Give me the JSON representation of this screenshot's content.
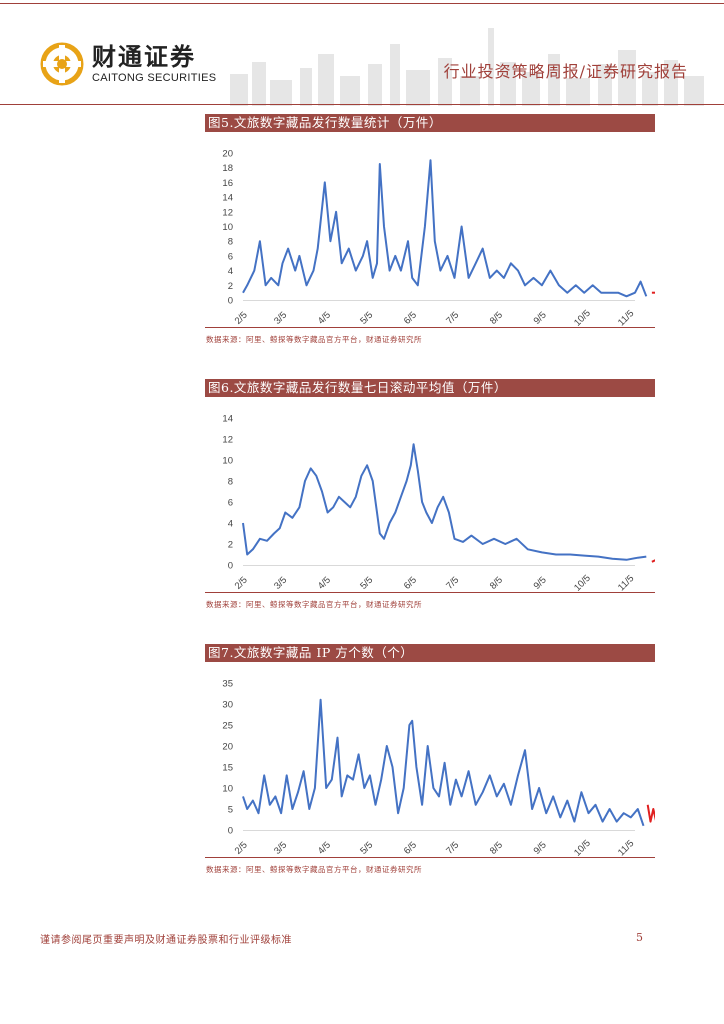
{
  "header": {
    "logo_cn": "财通证券",
    "logo_en": "CAITONG SECURITIES",
    "title": "行业投资策略周报/证券研究报告"
  },
  "figures": [
    {
      "title": "图5.文旅数字藏品发行数量统计（万件）",
      "source": "数据来源：阿里、鲸探等数字藏品官方平台，财通证券研究所"
    },
    {
      "title": "图6.文旅数字藏品发行数量七日滚动平均值（万件）",
      "source": "数据来源：阿里、鲸探等数字藏品官方平台，财通证券研究所"
    },
    {
      "title": "图7.文旅数字藏品 IP 方个数（个）",
      "source": "数据来源：阿里、鲸探等数字藏品官方平台，财通证券研究所"
    }
  ],
  "footer": {
    "disclaimer": "谨请参阅尾页重要声明及财通证券股票和行业评级标准",
    "page": "5"
  },
  "colors": {
    "accent": "#a0403a",
    "title_bar": "#9c4a44",
    "series": "#4472c4",
    "highlight": "#e02020"
  },
  "chart_data": [
    {
      "type": "line",
      "x_ticks": [
        "2/5",
        "3/5",
        "4/5",
        "5/5",
        "6/5",
        "7/5",
        "8/5",
        "9/5",
        "10/5",
        "11/5"
      ],
      "ylim": [
        0,
        20
      ],
      "y_ticks": [
        "0",
        "2",
        "4",
        "6",
        "8",
        "10",
        "12",
        "14",
        "16",
        "18",
        "20"
      ],
      "x_start": "2022-02-05",
      "x_end": "2022-11-10",
      "points": [
        [
          0,
          1
        ],
        [
          3,
          2
        ],
        [
          8,
          4
        ],
        [
          12,
          8
        ],
        [
          16,
          2
        ],
        [
          20,
          3
        ],
        [
          25,
          2
        ],
        [
          28,
          5
        ],
        [
          32,
          7
        ],
        [
          37,
          4
        ],
        [
          40,
          6
        ],
        [
          45,
          2
        ],
        [
          50,
          4
        ],
        [
          53,
          7
        ],
        [
          58,
          16
        ],
        [
          62,
          8
        ],
        [
          66,
          12
        ],
        [
          70,
          5
        ],
        [
          75,
          7
        ],
        [
          80,
          4
        ],
        [
          85,
          6
        ],
        [
          88,
          8
        ],
        [
          92,
          3
        ],
        [
          95,
          5
        ],
        [
          97,
          18.5
        ],
        [
          100,
          10
        ],
        [
          104,
          4
        ],
        [
          108,
          6
        ],
        [
          112,
          4
        ],
        [
          117,
          8
        ],
        [
          120,
          3
        ],
        [
          124,
          2
        ],
        [
          129,
          10
        ],
        [
          133,
          19
        ],
        [
          136,
          8
        ],
        [
          140,
          4
        ],
        [
          145,
          6
        ],
        [
          150,
          3
        ],
        [
          155,
          10
        ],
        [
          160,
          3
        ],
        [
          165,
          5
        ],
        [
          170,
          7
        ],
        [
          175,
          3
        ],
        [
          180,
          4
        ],
        [
          185,
          3
        ],
        [
          190,
          5
        ],
        [
          195,
          4
        ],
        [
          200,
          2
        ],
        [
          206,
          3
        ],
        [
          212,
          2
        ],
        [
          218,
          4
        ],
        [
          224,
          2
        ],
        [
          230,
          1
        ],
        [
          236,
          2
        ],
        [
          242,
          1
        ],
        [
          248,
          2
        ],
        [
          254,
          1
        ],
        [
          260,
          1
        ],
        [
          266,
          1
        ],
        [
          272,
          0.5
        ],
        [
          278,
          1
        ],
        [
          282,
          2.5
        ],
        [
          286,
          0.5
        ],
        [
          290,
          1
        ],
        [
          293,
          1
        ]
      ],
      "highlight_from": 287
    },
    {
      "type": "line",
      "x_ticks": [
        "2/5",
        "3/5",
        "4/5",
        "5/5",
        "6/5",
        "7/5",
        "8/5",
        "9/5",
        "10/5",
        "11/5"
      ],
      "ylim": [
        0,
        14
      ],
      "y_ticks": [
        "0",
        "2",
        "4",
        "6",
        "8",
        "10",
        "12",
        "14"
      ],
      "x_start": "2022-02-05",
      "x_end": "2022-11-10",
      "points": [
        [
          0,
          4
        ],
        [
          3,
          1
        ],
        [
          7,
          1.5
        ],
        [
          12,
          2.5
        ],
        [
          17,
          2.3
        ],
        [
          22,
          3
        ],
        [
          26,
          3.5
        ],
        [
          30,
          5
        ],
        [
          35,
          4.5
        ],
        [
          40,
          5.5
        ],
        [
          44,
          8
        ],
        [
          48,
          9.2
        ],
        [
          52,
          8.5
        ],
        [
          56,
          7
        ],
        [
          60,
          5
        ],
        [
          64,
          5.5
        ],
        [
          68,
          6.5
        ],
        [
          72,
          6
        ],
        [
          76,
          5.5
        ],
        [
          80,
          6.5
        ],
        [
          84,
          8.5
        ],
        [
          88,
          9.5
        ],
        [
          92,
          8
        ],
        [
          95,
          5
        ],
        [
          97,
          3
        ],
        [
          100,
          2.5
        ],
        [
          104,
          4
        ],
        [
          108,
          5
        ],
        [
          112,
          6.5
        ],
        [
          116,
          8
        ],
        [
          119,
          9.5
        ],
        [
          121,
          11.5
        ],
        [
          124,
          9
        ],
        [
          127,
          6
        ],
        [
          130,
          5
        ],
        [
          134,
          4
        ],
        [
          138,
          5.5
        ],
        [
          142,
          6.5
        ],
        [
          146,
          5
        ],
        [
          150,
          2.5
        ],
        [
          156,
          2.2
        ],
        [
          162,
          2.8
        ],
        [
          170,
          2
        ],
        [
          178,
          2.5
        ],
        [
          186,
          2
        ],
        [
          194,
          2.5
        ],
        [
          202,
          1.5
        ],
        [
          212,
          1.2
        ],
        [
          222,
          1
        ],
        [
          232,
          1
        ],
        [
          242,
          0.9
        ],
        [
          252,
          0.8
        ],
        [
          262,
          0.6
        ],
        [
          272,
          0.5
        ],
        [
          280,
          0.7
        ],
        [
          286,
          0.8
        ],
        [
          290,
          0.3
        ],
        [
          293,
          0.5
        ]
      ],
      "highlight_from": 287
    },
    {
      "type": "line",
      "x_ticks": [
        "2/5",
        "3/5",
        "4/5",
        "5/5",
        "6/5",
        "7/5",
        "8/5",
        "9/5",
        "10/5",
        "11/5"
      ],
      "ylim": [
        0,
        35
      ],
      "y_ticks": [
        "0",
        "5",
        "10",
        "15",
        "20",
        "25",
        "30",
        "35"
      ],
      "x_start": "2022-02-05",
      "x_end": "2022-11-10",
      "points": [
        [
          0,
          8
        ],
        [
          3,
          5
        ],
        [
          7,
          7
        ],
        [
          11,
          4
        ],
        [
          15,
          13
        ],
        [
          19,
          6
        ],
        [
          23,
          8
        ],
        [
          27,
          4
        ],
        [
          31,
          13
        ],
        [
          35,
          5
        ],
        [
          39,
          9
        ],
        [
          43,
          14
        ],
        [
          47,
          5
        ],
        [
          51,
          10
        ],
        [
          55,
          31
        ],
        [
          59,
          10
        ],
        [
          63,
          12
        ],
        [
          67,
          22
        ],
        [
          70,
          8
        ],
        [
          74,
          13
        ],
        [
          78,
          12
        ],
        [
          82,
          18
        ],
        [
          86,
          10
        ],
        [
          90,
          13
        ],
        [
          94,
          6
        ],
        [
          98,
          12
        ],
        [
          102,
          20
        ],
        [
          106,
          15
        ],
        [
          110,
          4
        ],
        [
          114,
          10
        ],
        [
          118,
          25
        ],
        [
          120,
          26
        ],
        [
          123,
          15
        ],
        [
          127,
          6
        ],
        [
          131,
          20
        ],
        [
          135,
          10
        ],
        [
          139,
          8
        ],
        [
          143,
          16
        ],
        [
          147,
          6
        ],
        [
          151,
          12
        ],
        [
          155,
          8
        ],
        [
          160,
          14
        ],
        [
          165,
          6
        ],
        [
          170,
          9
        ],
        [
          175,
          13
        ],
        [
          180,
          8
        ],
        [
          185,
          11
        ],
        [
          190,
          6
        ],
        [
          195,
          13
        ],
        [
          200,
          19
        ],
        [
          205,
          5
        ],
        [
          210,
          10
        ],
        [
          215,
          4
        ],
        [
          220,
          8
        ],
        [
          225,
          3
        ],
        [
          230,
          7
        ],
        [
          235,
          2
        ],
        [
          240,
          9
        ],
        [
          245,
          4
        ],
        [
          250,
          6
        ],
        [
          255,
          2
        ],
        [
          260,
          5
        ],
        [
          265,
          2
        ],
        [
          270,
          4
        ],
        [
          275,
          3
        ],
        [
          280,
          5
        ],
        [
          284,
          1
        ],
        [
          287,
          6
        ],
        [
          289,
          2
        ],
        [
          291,
          5
        ],
        [
          293,
          2
        ]
      ],
      "highlight_from": 286
    }
  ]
}
